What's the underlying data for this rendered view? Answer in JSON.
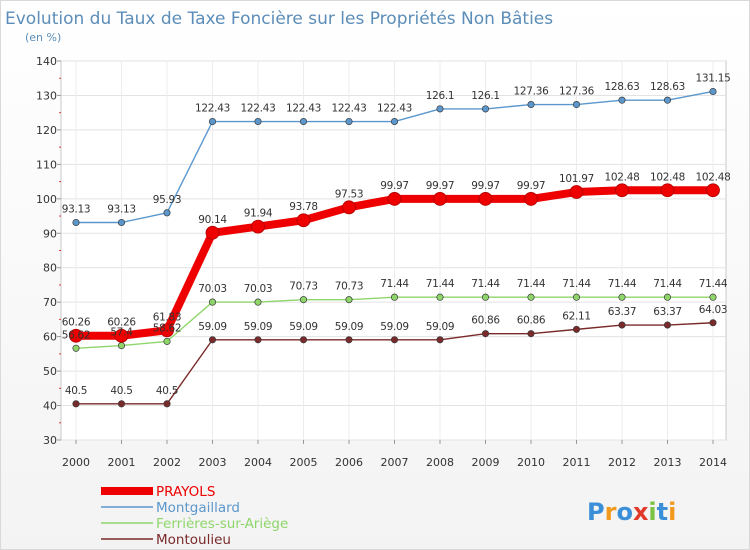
{
  "chart_data": {
    "type": "line",
    "title": "Evolution du Taux de Taxe Foncière sur les Propriétés Non Bâties",
    "subtitle": "(en %)",
    "x": [
      "2000",
      "2001",
      "2002",
      "2003",
      "2004",
      "2005",
      "2006",
      "2007",
      "2008",
      "2009",
      "2010",
      "2011",
      "2012",
      "2013",
      "2014"
    ],
    "ylim": [
      30,
      140
    ],
    "yticks": [
      "30",
      "40",
      "50",
      "60",
      "70",
      "80",
      "90",
      "100",
      "110",
      "120",
      "130",
      "140"
    ],
    "grid": true,
    "legend_position": "bottom-left",
    "series": [
      {
        "name": "PRAYOLS",
        "color": "#ee0000",
        "values": [
          60.26,
          60.26,
          61.83,
          90.14,
          91.94,
          93.78,
          97.53,
          99.97,
          99.97,
          99.97,
          99.97,
          101.97,
          102.48,
          102.48,
          102.48
        ],
        "labels": [
          "60.26",
          "60.26",
          "61.83",
          "90.14",
          "91.94",
          "93.78",
          "97.53",
          "99.97",
          "99.97",
          "99.97",
          "99.97",
          "101.97",
          "102.48",
          "102.48",
          "102.48"
        ]
      },
      {
        "name": "Montgaillard",
        "color": "#5b97cc",
        "values": [
          93.13,
          93.13,
          95.93,
          122.43,
          122.43,
          122.43,
          122.43,
          122.43,
          126.1,
          126.1,
          127.36,
          127.36,
          128.63,
          128.63,
          131.15
        ],
        "labels": [
          "93.13",
          "93.13",
          "95.93",
          "122.43",
          "122.43",
          "122.43",
          "122.43",
          "122.43",
          "126.1",
          "126.1",
          "127.36",
          "127.36",
          "128.63",
          "128.63",
          "131.15"
        ]
      },
      {
        "name": "Ferrières-sur-Ariège",
        "color": "#8fd66a",
        "values": [
          56.62,
          57.4,
          58.62,
          70.03,
          70.03,
          70.73,
          70.73,
          71.44,
          71.44,
          71.44,
          71.44,
          71.44,
          71.44,
          71.44,
          71.44
        ],
        "labels": [
          "56.62",
          "57.4",
          "58.62",
          "70.03",
          "70.03",
          "70.73",
          "70.73",
          "71.44",
          "71.44",
          "71.44",
          "71.44",
          "71.44",
          "71.44",
          "71.44",
          "71.44"
        ]
      },
      {
        "name": "Montoulieu",
        "color": "#7a2a2a",
        "values": [
          40.5,
          40.5,
          40.5,
          59.09,
          59.09,
          59.09,
          59.09,
          59.09,
          59.09,
          60.86,
          60.86,
          62.11,
          63.37,
          63.37,
          64.03
        ],
        "labels": [
          "40.5",
          "40.5",
          "40.5",
          "59.09",
          "59.09",
          "59.09",
          "59.09",
          "59.09",
          "59.09",
          "60.86",
          "60.86",
          "62.11",
          "63.37",
          "63.37",
          "64.03"
        ]
      }
    ]
  },
  "logo": {
    "text": "Proxiti"
  }
}
